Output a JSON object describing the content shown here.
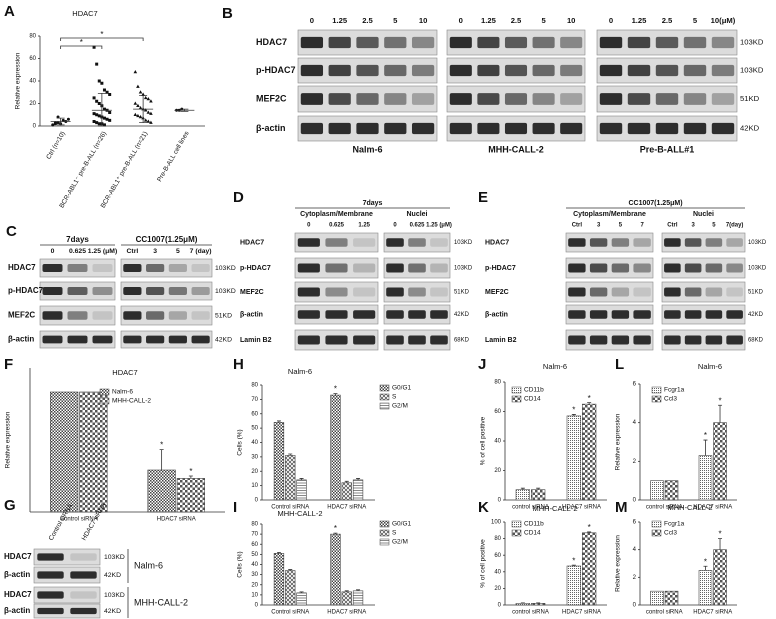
{
  "chart_data": [
    {
      "panel": "A",
      "type": "strip",
      "title": "HDAC7",
      "ylabel": "Relative expression",
      "categories": [
        "Ctrl (n=10)",
        "BCR-ABL1⁻ pre-B-ALL (n=26)",
        "BCR-ABL1⁺ pre-B-ALL (n=21)",
        "Pre-B-ALL cell lines"
      ],
      "values": [
        [
          1,
          2,
          3,
          2,
          5,
          4,
          6,
          1,
          3,
          8
        ],
        [
          70,
          55,
          40,
          38,
          32,
          30,
          28,
          25,
          22,
          20,
          18,
          15,
          14,
          12,
          11,
          10,
          9,
          8,
          7,
          6,
          5,
          4,
          3,
          2,
          2,
          1
        ],
        [
          48,
          35,
          30,
          28,
          25,
          24,
          22,
          20,
          18,
          16,
          15,
          14,
          12,
          11,
          10,
          9,
          8,
          7,
          5,
          4,
          3
        ],
        [
          14,
          14,
          15
        ]
      ],
      "means": [
        4,
        14,
        15,
        14
      ],
      "sd": [
        3,
        15,
        12,
        1
      ],
      "ylim": [
        0,
        80
      ],
      "yticks": [
        0,
        20,
        40,
        60,
        80
      ],
      "significance": [
        {
          "groups": [
            0,
            1
          ],
          "label": "*"
        },
        {
          "groups": [
            0,
            2
          ],
          "label": "*"
        }
      ]
    },
    {
      "panel": "F",
      "type": "bar",
      "title": "HDAC7",
      "ylabel": "Relative expression",
      "categories": [
        "Control siRNA",
        "HDAC7 siRNA"
      ],
      "series": [
        {
          "name": "Nalm-6",
          "pattern": "checker",
          "values": [
            1,
            0.35
          ],
          "errors": [
            null,
            0.17
          ],
          "stars": [
            null,
            "*"
          ]
        },
        {
          "name": "MHH-CALL-2",
          "pattern": "coarse",
          "values": [
            1,
            0.28
          ],
          "errors": [
            null,
            0.02
          ],
          "stars": [
            null,
            "*"
          ]
        }
      ],
      "ylim": [
        0,
        1.2
      ]
    },
    {
      "panel": "H",
      "type": "bar",
      "title": "Nalm-6",
      "ylabel": "Cells (%)",
      "categories": [
        "Control siRNA",
        "HDAC7 siRNA"
      ],
      "series": [
        {
          "name": "G0/G1",
          "pattern": "checker",
          "values": [
            54,
            73
          ],
          "errors": [
            1,
            1
          ],
          "stars": [
            null,
            "*"
          ]
        },
        {
          "name": "S",
          "pattern": "cross",
          "values": [
            31,
            12
          ],
          "errors": [
            1,
            1
          ]
        },
        {
          "name": "G2/M",
          "pattern": "hline",
          "values": [
            14,
            14
          ],
          "errors": [
            1,
            1
          ]
        }
      ],
      "ylim": [
        0,
        80
      ],
      "yticks": [
        0,
        10,
        20,
        30,
        40,
        50,
        60,
        70,
        80
      ]
    },
    {
      "panel": "I",
      "type": "bar",
      "title": "MHH-CALL-2",
      "ylabel": "Cells (%)",
      "categories": [
        "Control siRNA",
        "HDAC7 siRNA"
      ],
      "series": [
        {
          "name": "G0/G1",
          "pattern": "checker",
          "values": [
            51,
            70
          ],
          "errors": [
            1,
            1
          ],
          "stars": [
            null,
            "*"
          ]
        },
        {
          "name": "S",
          "pattern": "cross",
          "values": [
            34,
            13
          ],
          "errors": [
            1,
            1
          ]
        },
        {
          "name": "G2/M",
          "pattern": "hline",
          "values": [
            12,
            14
          ],
          "errors": [
            1,
            1
          ]
        }
      ],
      "ylim": [
        0,
        80
      ],
      "yticks": [
        0,
        10,
        20,
        30,
        40,
        50,
        60,
        70,
        80
      ]
    },
    {
      "panel": "J",
      "type": "bar",
      "title": "Nalm-6",
      "ylabel": "% of cell positive",
      "categories": [
        "control siRNA",
        "HDAC7 siRNA"
      ],
      "series": [
        {
          "name": "CD11b",
          "pattern": "dots",
          "values": [
            7,
            57
          ],
          "errors": [
            1,
            1
          ],
          "stars": [
            null,
            "*"
          ]
        },
        {
          "name": "CD14",
          "pattern": "coarse",
          "values": [
            7,
            65
          ],
          "errors": [
            1,
            1
          ],
          "stars": [
            null,
            "*"
          ]
        }
      ],
      "ylim": [
        0,
        80
      ],
      "yticks": [
        0,
        20,
        40,
        60,
        80
      ]
    },
    {
      "panel": "K",
      "type": "bar",
      "title": "MHH-CALL-2",
      "ylabel": "% of cell positive",
      "categories": [
        "control siRNA",
        "HDAC7 siRNA"
      ],
      "series": [
        {
          "name": "CD11b",
          "pattern": "dots",
          "values": [
            2,
            47
          ],
          "errors": [
            0.5,
            1
          ],
          "stars": [
            null,
            "*"
          ]
        },
        {
          "name": "CD14",
          "pattern": "coarse",
          "values": [
            2,
            87
          ],
          "errors": [
            0.5,
            1
          ],
          "stars": [
            null,
            "*"
          ]
        }
      ],
      "ylim": [
        0,
        100
      ],
      "yticks": [
        0,
        20,
        40,
        60,
        80,
        100
      ]
    },
    {
      "panel": "L",
      "type": "bar",
      "title": "Nalm-6",
      "ylabel": "Relative expression",
      "categories": [
        "control siRNA",
        "HDAC7 siRNA"
      ],
      "series": [
        {
          "name": "Fcgr1a",
          "pattern": "dots",
          "values": [
            1,
            2.3
          ],
          "errors": [
            null,
            0.8
          ],
          "stars": [
            null,
            "*"
          ]
        },
        {
          "name": "Ccl3",
          "pattern": "coarse",
          "values": [
            1,
            4
          ],
          "errors": [
            null,
            0.9
          ],
          "stars": [
            null,
            "*"
          ]
        }
      ],
      "ylim": [
        0,
        6
      ],
      "yticks": [
        0,
        2,
        4,
        6
      ]
    },
    {
      "panel": "M",
      "type": "bar",
      "title": "MHH-CALL-2",
      "ylabel": "Relative expression",
      "categories": [
        "control siRNA",
        "HDAC7 siRNA"
      ],
      "series": [
        {
          "name": "Fcgr1a",
          "pattern": "dots",
          "values": [
            1,
            2.5
          ],
          "errors": [
            null,
            0.3
          ],
          "stars": [
            null,
            "*"
          ]
        },
        {
          "name": "Ccl3",
          "pattern": "coarse",
          "values": [
            1,
            4
          ],
          "errors": [
            null,
            0.8
          ],
          "stars": [
            null,
            "*"
          ]
        }
      ],
      "ylim": [
        0,
        6
      ],
      "yticks": [
        0,
        2,
        4,
        6
      ]
    }
  ],
  "blots": [
    {
      "panel": "B",
      "groups": [
        {
          "lanes": [
            "0",
            "1.25",
            "2.5",
            "5",
            "10"
          ],
          "name": "Nalm-6"
        },
        {
          "lanes": [
            "0",
            "1.25",
            "2.5",
            "5",
            "10"
          ],
          "name": "MHH-CALL-2"
        },
        {
          "lanes": [
            "0",
            "1.25",
            "2.5",
            "5",
            "10(μM)"
          ],
          "name": "Pre-B-ALL#1"
        }
      ],
      "rows": [
        "HDAC7",
        "p-HDAC7",
        "MEF2C",
        "β-actin"
      ],
      "sizes": [
        "103KD",
        "103KD",
        "51KD",
        "42KD"
      ]
    },
    {
      "panel": "C",
      "groups": [
        {
          "header": "7days",
          "lanes": [
            "0",
            "0.625",
            "1.25 (μM)"
          ]
        },
        {
          "header": "CC1007(1.25μM)",
          "lanes": [
            "Ctrl",
            "3",
            "5",
            "7 (day)"
          ]
        }
      ],
      "rows": [
        "HDAC7",
        "p-HDAC7",
        "MEF2C",
        "β-actin"
      ],
      "sizes": [
        "103KD",
        "103KD",
        "51KD",
        "42KD"
      ]
    },
    {
      "panel": "D",
      "title": "7days",
      "groups": [
        {
          "header": "Cytoplasm/Membrane",
          "lanes": [
            "0",
            "0.625",
            "1.25"
          ]
        },
        {
          "header": "Nuclei",
          "lanes": [
            "0",
            "0.625",
            "1.25 (μM)"
          ]
        }
      ],
      "rows": [
        "HDAC7",
        "p-HDAC7",
        "MEF2C",
        "β-actin",
        "Lamin B2"
      ],
      "sizes": [
        "103KD",
        "103KD",
        "51KD",
        "42KD",
        "68KD"
      ]
    },
    {
      "panel": "E",
      "title": "CC1007(1.25μM)",
      "groups": [
        {
          "header": "Cytoplasm/Membrane",
          "lanes": [
            "Ctrl",
            "3",
            "5",
            "7"
          ]
        },
        {
          "header": "Nuclei",
          "lanes": [
            "Ctrl",
            "3",
            "5",
            "7(day)"
          ]
        }
      ],
      "rows": [
        "HDAC7",
        "p-HDAC7",
        "MEF2C",
        "β-actin",
        "Lamin B2"
      ],
      "sizes": [
        "103KD",
        "103KD",
        "51KD",
        "42KD",
        "68KD"
      ]
    },
    {
      "panel": "G",
      "groups": [
        {
          "lanes": [
            "Control siRNA",
            "HDAC7 siRNA"
          ]
        }
      ],
      "rows": [
        "HDAC7",
        "β-actin",
        "HDAC7",
        "β-actin"
      ],
      "sizes": [
        "103KD",
        "42KD",
        "103KD",
        "42KD"
      ],
      "names": [
        "Nalm-6",
        "MHH-CALL-2"
      ]
    }
  ]
}
